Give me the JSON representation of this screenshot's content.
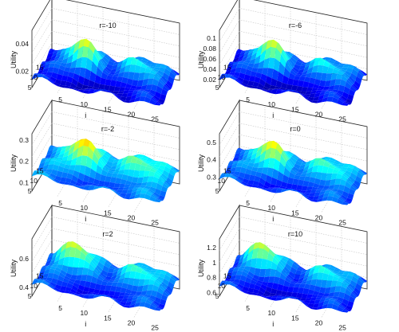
{
  "chart_data": [
    {
      "type": "surface",
      "title": "r=-10",
      "zlabel": "Utility",
      "xlabel": "i",
      "ylabel": "",
      "zticks": [
        "0.02",
        "0.04"
      ],
      "zlim": [
        0.008,
        0.05
      ],
      "yticks": [
        "15",
        "10",
        "5"
      ],
      "xticks": [
        "5",
        "10",
        "15",
        "20",
        "25"
      ],
      "colormap": "jet",
      "peak_at": [
        8,
        10
      ],
      "scale": 0.035,
      "base": 0.014
    },
    {
      "type": "surface",
      "title": "r=-6",
      "zlabel": "Utility",
      "xlabel": "i",
      "ylabel": "",
      "zticks": [
        "0.1",
        "0.08",
        "0.06",
        "0.04",
        "0.02"
      ],
      "zlim": [
        0.005,
        0.115
      ],
      "yticks": [
        "15",
        "10",
        "5"
      ],
      "xticks": [
        "5",
        "10",
        "15",
        "20",
        "25"
      ],
      "colormap": "jet",
      "peak_at": [
        8,
        10
      ],
      "scale": 0.09,
      "base": 0.02
    },
    {
      "type": "surface",
      "title": "r=-2",
      "zlabel": "Utility",
      "xlabel": "i",
      "ylabel": "",
      "zticks": [
        "0.3",
        "0.2",
        "0.1"
      ],
      "zlim": [
        0.06,
        0.33
      ],
      "yticks": [
        "15",
        "10",
        "5"
      ],
      "xticks": [
        "5",
        "10",
        "15",
        "20",
        "25"
      ],
      "colormap": "jet",
      "peak_at": [
        8,
        10
      ],
      "scale": 0.2,
      "base": 0.13
    },
    {
      "type": "surface",
      "title": "r=0",
      "zlabel": "Utility",
      "xlabel": "i",
      "ylabel": "",
      "zticks": [
        "0.5",
        "0.4",
        "0.3"
      ],
      "zlim": [
        0.22,
        0.55
      ],
      "yticks": [
        "15",
        "10",
        "5"
      ],
      "xticks": [
        "5",
        "10",
        "15",
        "20",
        "25"
      ],
      "colormap": "jet",
      "peak_at": [
        8,
        10
      ],
      "scale": 0.25,
      "base": 0.29
    },
    {
      "type": "surface",
      "title": "r=2",
      "zlabel": "Utility",
      "xlabel": "i",
      "ylabel": "",
      "zticks": [
        "0.6",
        "0.4"
      ],
      "zlim": [
        0.34,
        0.74
      ],
      "yticks": [
        "15",
        "10",
        "5"
      ],
      "xticks": [
        "5",
        "10",
        "15",
        "20",
        "25"
      ],
      "colormap": "jet",
      "peak_at": [
        6,
        12
      ],
      "scale": 0.3,
      "base": 0.42
    },
    {
      "type": "surface",
      "title": "r=10",
      "zlabel": "Utility",
      "xlabel": "i",
      "ylabel": "",
      "zticks": [
        "1.2",
        "1",
        "0.8",
        "0.6"
      ],
      "zlim": [
        0.55,
        1.32
      ],
      "yticks": [
        "15",
        "10",
        "5"
      ],
      "xticks": [
        "5",
        "10",
        "15",
        "20",
        "25"
      ],
      "colormap": "jet",
      "peak_at": [
        6,
        12
      ],
      "scale": 0.6,
      "base": 0.68
    }
  ]
}
